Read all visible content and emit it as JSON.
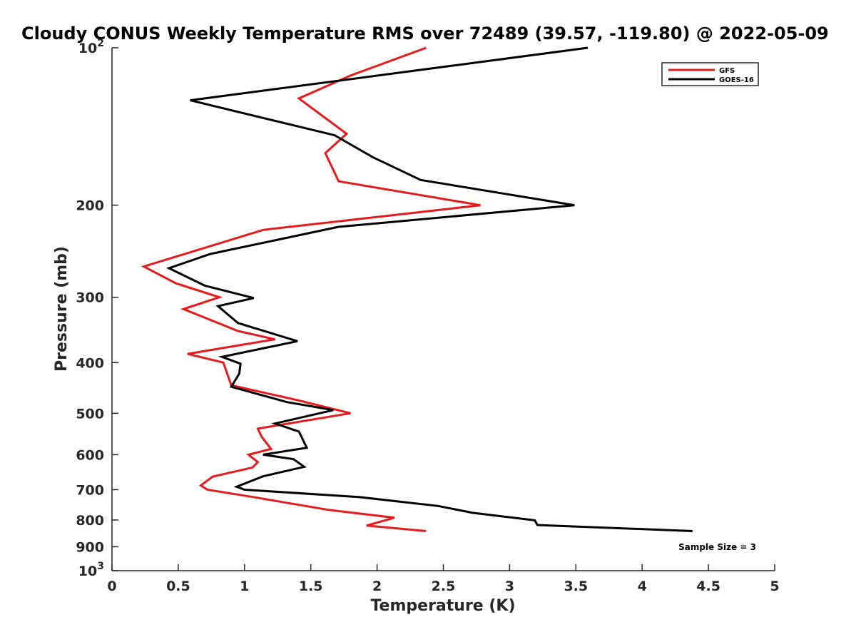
{
  "chart_data": {
    "type": "line",
    "title": "Cloudy CONUS Weekly Temperature RMS over 72489 (39.57, -119.80) @ 2022-05-09",
    "xlabel": "Temperature (K)",
    "ylabel": "Pressure (mb)",
    "xlim": [
      0,
      5
    ],
    "ylim": [
      100,
      1000
    ],
    "y_scale": "log",
    "y_reversed": true,
    "xticks": [
      0,
      0.5,
      1,
      1.5,
      2,
      2.5,
      3,
      3.5,
      4,
      4.5,
      5
    ],
    "xtick_labels": [
      "0",
      "0.5",
      "1",
      "1.5",
      "2",
      "2.5",
      "3",
      "3.5",
      "4",
      "4.5",
      "5"
    ],
    "yticks": [
      {
        "value": 100,
        "base": "10",
        "exp": "2",
        "label": ""
      },
      {
        "value": 200,
        "label": "200"
      },
      {
        "value": 300,
        "label": "300"
      },
      {
        "value": 400,
        "label": "400"
      },
      {
        "value": 500,
        "label": "500"
      },
      {
        "value": 600,
        "label": "600"
      },
      {
        "value": 700,
        "label": "700"
      },
      {
        "value": 800,
        "label": "800"
      },
      {
        "value": 900,
        "label": "900"
      },
      {
        "value": 1000,
        "base": "10",
        "exp": "3",
        "label": ""
      }
    ],
    "grid": false,
    "legend_position": "top-right",
    "annotation": "Sample Size = 3",
    "series": [
      {
        "name": "GFS",
        "color": "#e41a1c",
        "points": [
          {
            "x": 2.37,
            "p": 100
          },
          {
            "x": 1.8,
            "p": 113
          },
          {
            "x": 1.41,
            "p": 125
          },
          {
            "x": 1.77,
            "p": 146
          },
          {
            "x": 1.61,
            "p": 159
          },
          {
            "x": 1.71,
            "p": 180
          },
          {
            "x": 2.78,
            "p": 200
          },
          {
            "x": 1.14,
            "p": 223
          },
          {
            "x": 0.24,
            "p": 262
          },
          {
            "x": 0.48,
            "p": 282
          },
          {
            "x": 0.81,
            "p": 300
          },
          {
            "x": 0.54,
            "p": 316
          },
          {
            "x": 0.95,
            "p": 348
          },
          {
            "x": 1.23,
            "p": 361
          },
          {
            "x": 0.57,
            "p": 385
          },
          {
            "x": 0.84,
            "p": 400
          },
          {
            "x": 0.9,
            "p": 442
          },
          {
            "x": 1.4,
            "p": 472
          },
          {
            "x": 1.8,
            "p": 500
          },
          {
            "x": 1.1,
            "p": 535
          },
          {
            "x": 1.13,
            "p": 555
          },
          {
            "x": 1.2,
            "p": 585
          },
          {
            "x": 1.03,
            "p": 600
          },
          {
            "x": 1.1,
            "p": 620
          },
          {
            "x": 1.06,
            "p": 635
          },
          {
            "x": 0.76,
            "p": 661
          },
          {
            "x": 0.67,
            "p": 687
          },
          {
            "x": 0.72,
            "p": 700
          },
          {
            "x": 1.05,
            "p": 722
          },
          {
            "x": 1.63,
            "p": 765
          },
          {
            "x": 2.13,
            "p": 792
          },
          {
            "x": 1.92,
            "p": 820
          },
          {
            "x": 2.37,
            "p": 840
          }
        ]
      },
      {
        "name": "GOES-16",
        "color": "#000000",
        "points": [
          {
            "x": 3.59,
            "p": 100
          },
          {
            "x": 0.59,
            "p": 126
          },
          {
            "x": 1.68,
            "p": 147
          },
          {
            "x": 1.97,
            "p": 162
          },
          {
            "x": 2.33,
            "p": 179
          },
          {
            "x": 3.49,
            "p": 200
          },
          {
            "x": 1.71,
            "p": 220
          },
          {
            "x": 0.74,
            "p": 248
          },
          {
            "x": 0.43,
            "p": 264
          },
          {
            "x": 0.7,
            "p": 285
          },
          {
            "x": 1.07,
            "p": 301
          },
          {
            "x": 0.8,
            "p": 312
          },
          {
            "x": 0.95,
            "p": 336
          },
          {
            "x": 1.4,
            "p": 364
          },
          {
            "x": 0.83,
            "p": 390
          },
          {
            "x": 0.97,
            "p": 402
          },
          {
            "x": 0.96,
            "p": 420
          },
          {
            "x": 0.9,
            "p": 445
          },
          {
            "x": 1.32,
            "p": 476
          },
          {
            "x": 1.67,
            "p": 493
          },
          {
            "x": 1.23,
            "p": 523
          },
          {
            "x": 1.41,
            "p": 542
          },
          {
            "x": 1.47,
            "p": 582
          },
          {
            "x": 1.14,
            "p": 600
          },
          {
            "x": 1.37,
            "p": 612
          },
          {
            "x": 1.45,
            "p": 633
          },
          {
            "x": 1.14,
            "p": 660
          },
          {
            "x": 0.94,
            "p": 691
          },
          {
            "x": 1.0,
            "p": 700
          },
          {
            "x": 1.86,
            "p": 723
          },
          {
            "x": 2.46,
            "p": 752
          },
          {
            "x": 2.72,
            "p": 775
          },
          {
            "x": 3.19,
            "p": 801
          },
          {
            "x": 3.21,
            "p": 818
          },
          {
            "x": 4.38,
            "p": 840
          }
        ]
      }
    ]
  }
}
